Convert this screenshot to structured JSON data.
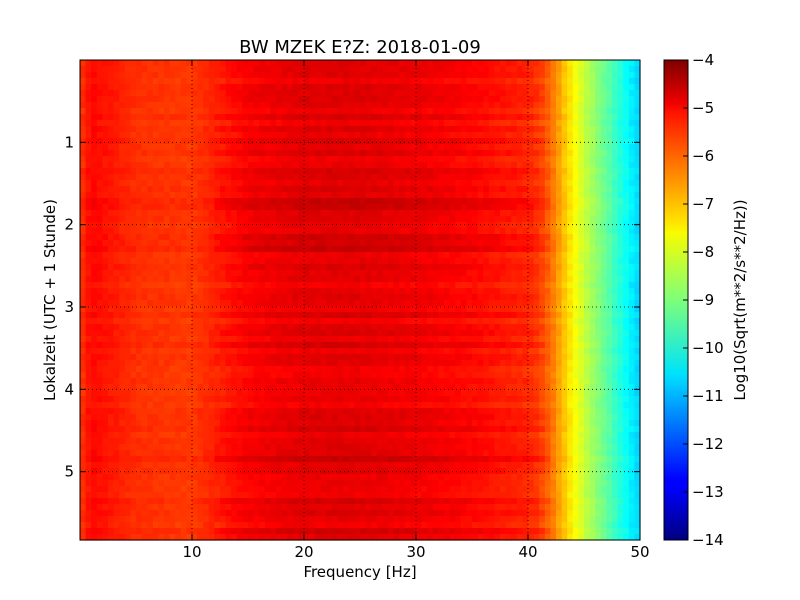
{
  "chart_data": {
    "type": "heatmap",
    "title": "BW MZEK E?Z: 2018-01-09",
    "xlabel": "Frequency [Hz]",
    "ylabel": "Lokalzeit (UTC + 1 Stunde)",
    "xlim": [
      0,
      50
    ],
    "ylim": [
      5.83,
      0
    ],
    "x_ticks": [
      10,
      20,
      30,
      40,
      50
    ],
    "y_ticks": [
      1,
      2,
      3,
      4,
      5
    ],
    "grid": true,
    "colormap": "jet",
    "colorbar": {
      "label": "Log10(Sqrt(m**2/s**2/Hz))",
      "range": [
        -14,
        -4
      ],
      "ticks": [
        -4,
        -5,
        -6,
        -7,
        -8,
        -9,
        -10,
        -11,
        -12,
        -13,
        -14
      ]
    },
    "frequency_profile": {
      "freq_hz": [
        0,
        1,
        5,
        10,
        15,
        20,
        25,
        30,
        35,
        40,
        41,
        42,
        43,
        44,
        45,
        46,
        47,
        48,
        49,
        50
      ],
      "log10_amplitude": [
        -5.8,
        -5.3,
        -5.7,
        -5.8,
        -5.2,
        -5.0,
        -5.0,
        -5.1,
        -5.3,
        -5.6,
        -5.8,
        -6.3,
        -7.0,
        -7.7,
        -8.3,
        -8.8,
        -9.3,
        -9.8,
        -10.3,
        -10.7
      ]
    }
  }
}
